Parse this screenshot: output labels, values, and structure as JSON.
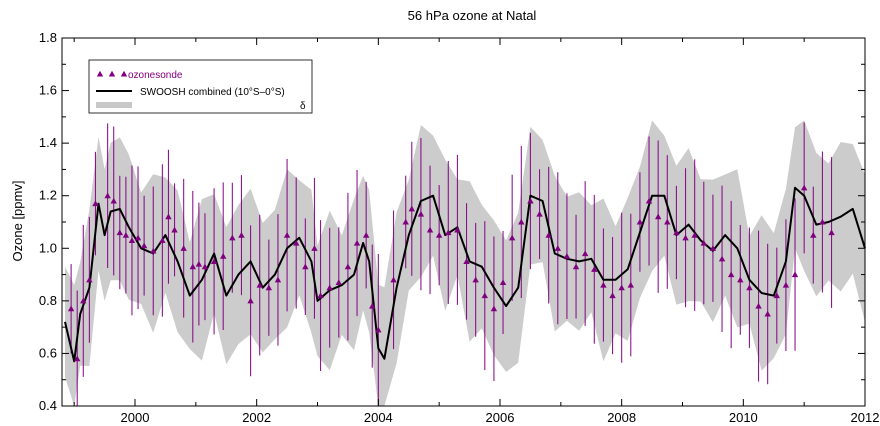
{
  "chart_data": {
    "type": "line",
    "title": "56 hPa ozone at Natal",
    "ylabel": "Ozone [ppmv]",
    "xlabel": "",
    "xlim": [
      1998.8,
      2012.0
    ],
    "ylim": [
      0.4,
      1.8
    ],
    "x_ticks": [
      2000,
      2002,
      2004,
      2006,
      2008,
      2010,
      2012
    ],
    "y_ticks": [
      0.4,
      0.6,
      0.8,
      1.0,
      1.2,
      1.4,
      1.6,
      1.8
    ],
    "x_tick_labels": [
      "2000",
      "2002",
      "2004",
      "2006",
      "2008",
      "2010",
      "2012"
    ],
    "y_tick_labels": [
      "0.4",
      "0.6",
      "0.8",
      "1.0",
      "1.2",
      "1.4",
      "1.6",
      "1.8"
    ],
    "legend": {
      "placement": "top-left",
      "entries": [
        {
          "label": "ozonesonde",
          "color": "#800080",
          "marker": "triangle"
        },
        {
          "label": "SWOOSH combined (10°S–0°S)",
          "color": "#000000",
          "marker": "line"
        },
        {
          "label": "δ",
          "color": "#c8c8c8",
          "marker": "band"
        }
      ]
    },
    "colors": {
      "sonde": "#800080",
      "swoosh": "#000000",
      "band": "#cccccc"
    },
    "series": [
      {
        "name": "SWOOSH combined (10°S–0°S)",
        "x": [
          1998.85,
          1999.0,
          1999.1,
          1999.25,
          1999.4,
          1999.5,
          1999.6,
          1999.75,
          1999.9,
          2000.1,
          2000.3,
          2000.5,
          2000.7,
          2000.9,
          2001.1,
          2001.3,
          2001.5,
          2001.7,
          2001.9,
          2002.1,
          2002.3,
          2002.5,
          2002.7,
          2002.9,
          2003.0,
          2003.2,
          2003.4,
          2003.6,
          2003.75,
          2003.85,
          2004.0,
          2004.1,
          2004.3,
          2004.5,
          2004.7,
          2004.9,
          2005.1,
          2005.3,
          2005.5,
          2005.7,
          2005.9,
          2006.1,
          2006.3,
          2006.5,
          2006.7,
          2006.9,
          2007.1,
          2007.3,
          2007.5,
          2007.7,
          2007.9,
          2008.1,
          2008.3,
          2008.5,
          2008.7,
          2008.9,
          2009.1,
          2009.3,
          2009.5,
          2009.7,
          2009.9,
          2010.1,
          2010.3,
          2010.5,
          2010.7,
          2010.85,
          2011.0,
          2011.2,
          2011.4,
          2011.6,
          2011.8,
          2012.0
        ],
        "values": [
          0.72,
          0.57,
          0.75,
          0.85,
          1.17,
          1.05,
          1.14,
          1.15,
          1.08,
          1.0,
          0.98,
          1.05,
          0.95,
          0.82,
          0.88,
          0.98,
          0.82,
          0.9,
          0.95,
          0.85,
          0.9,
          1.0,
          1.04,
          0.95,
          0.8,
          0.84,
          0.86,
          0.9,
          1.02,
          0.95,
          0.62,
          0.58,
          0.85,
          1.05,
          1.18,
          1.2,
          1.05,
          1.08,
          0.95,
          0.93,
          0.85,
          0.78,
          0.85,
          1.2,
          1.18,
          0.98,
          0.96,
          0.95,
          0.96,
          0.88,
          0.88,
          0.92,
          1.06,
          1.2,
          1.2,
          1.05,
          1.09,
          1.03,
          0.99,
          1.05,
          1.0,
          0.88,
          0.83,
          0.82,
          0.95,
          1.23,
          1.2,
          1.09,
          1.1,
          1.12,
          1.15,
          1.0
        ]
      },
      {
        "name": "ozonesonde",
        "x": [
          1998.95,
          1999.05,
          1999.15,
          1999.25,
          1999.35,
          1999.55,
          1999.65,
          1999.75,
          1999.85,
          1999.95,
          2000.05,
          2000.15,
          2000.3,
          2000.45,
          2000.55,
          2000.65,
          2000.8,
          2000.95,
          2001.05,
          2001.15,
          2001.3,
          2001.45,
          2001.6,
          2001.75,
          2001.9,
          2002.05,
          2002.2,
          2002.35,
          2002.5,
          2002.65,
          2002.8,
          2002.95,
          2003.05,
          2003.2,
          2003.35,
          2003.5,
          2003.65,
          2003.8,
          2003.9,
          2004.0,
          2004.25,
          2004.45,
          2004.55,
          2004.7,
          2004.85,
          2005.0,
          2005.15,
          2005.3,
          2005.45,
          2005.6,
          2005.75,
          2005.9,
          2006.05,
          2006.2,
          2006.35,
          2006.5,
          2006.65,
          2006.8,
          2006.95,
          2007.1,
          2007.25,
          2007.4,
          2007.55,
          2007.7,
          2007.85,
          2008.0,
          2008.15,
          2008.3,
          2008.45,
          2008.6,
          2008.75,
          2008.9,
          2009.05,
          2009.2,
          2009.35,
          2009.5,
          2009.65,
          2009.8,
          2009.95,
          2010.1,
          2010.25,
          2010.4,
          2010.55,
          2010.7,
          2010.85,
          2011.0,
          2011.15,
          2011.3,
          2011.45
        ],
        "values": [
          0.77,
          0.58,
          0.8,
          0.88,
          1.17,
          1.2,
          1.18,
          1.06,
          1.05,
          1.03,
          1.04,
          1.01,
          0.99,
          1.03,
          1.12,
          1.07,
          1.0,
          0.93,
          0.94,
          0.93,
          0.95,
          0.97,
          1.04,
          1.05,
          0.8,
          0.86,
          0.85,
          0.88,
          1.05,
          1.02,
          0.93,
          1.0,
          0.82,
          0.85,
          0.87,
          0.93,
          1.02,
          1.05,
          0.78,
          0.69,
          0.88,
          1.1,
          1.15,
          1.13,
          1.07,
          1.05,
          1.06,
          1.07,
          0.95,
          0.88,
          0.82,
          0.77,
          0.87,
          1.04,
          1.1,
          1.18,
          1.13,
          1.05,
          1.0,
          0.97,
          0.93,
          0.98,
          0.92,
          0.86,
          0.82,
          0.85,
          0.86,
          1.1,
          1.18,
          1.12,
          1.1,
          1.06,
          1.04,
          1.05,
          1.02,
          1.0,
          0.96,
          0.9,
          0.88,
          0.85,
          0.78,
          0.75,
          0.82,
          0.86,
          0.9,
          1.23,
          1.05,
          1.1,
          1.06
        ]
      }
    ]
  }
}
